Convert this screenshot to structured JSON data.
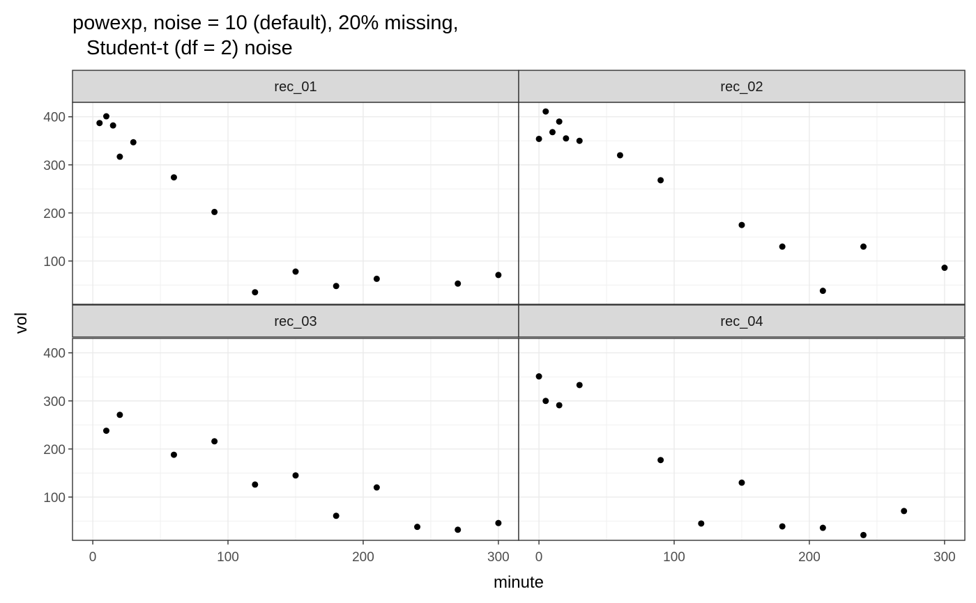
{
  "chart_data": {
    "type": "scatter",
    "title": "powexp, noise = 10 (default), 20% missing,\n  Student-t (df = 2) noise",
    "title_lines": [
      "powexp, noise = 10 (default), 20% missing,",
      "Student-t (df = 2) noise"
    ],
    "xlabel": "minute",
    "ylabel": "vol",
    "xlim": [
      -15,
      315
    ],
    "ylim": [
      10,
      430
    ],
    "x_ticks": [
      0,
      100,
      200,
      300
    ],
    "x_tick_labels": [
      "0",
      "100",
      "200",
      "300"
    ],
    "y_ticks": [
      100,
      200,
      300,
      400
    ],
    "y_tick_labels": [
      "100",
      "200",
      "300",
      "400"
    ],
    "grid": true,
    "theme": "bw",
    "layout": "2x2 facets",
    "point_color": "#000000",
    "facets": [
      {
        "label": "rec_01",
        "points": [
          {
            "x": 5,
            "y": 387
          },
          {
            "x": 10,
            "y": 401
          },
          {
            "x": 15,
            "y": 382
          },
          {
            "x": 20,
            "y": 317
          },
          {
            "x": 30,
            "y": 347
          },
          {
            "x": 60,
            "y": 274
          },
          {
            "x": 90,
            "y": 202
          },
          {
            "x": 120,
            "y": 35
          },
          {
            "x": 150,
            "y": 78
          },
          {
            "x": 180,
            "y": 48
          },
          {
            "x": 210,
            "y": 63
          },
          {
            "x": 270,
            "y": 53
          },
          {
            "x": 300,
            "y": 71
          }
        ]
      },
      {
        "label": "rec_02",
        "points": [
          {
            "x": 0,
            "y": 354
          },
          {
            "x": 5,
            "y": 411
          },
          {
            "x": 10,
            "y": 368
          },
          {
            "x": 15,
            "y": 390
          },
          {
            "x": 20,
            "y": 355
          },
          {
            "x": 30,
            "y": 350
          },
          {
            "x": 60,
            "y": 320
          },
          {
            "x": 90,
            "y": 268
          },
          {
            "x": 150,
            "y": 175
          },
          {
            "x": 180,
            "y": 130
          },
          {
            "x": 210,
            "y": 38
          },
          {
            "x": 240,
            "y": 130
          },
          {
            "x": 300,
            "y": 86
          }
        ]
      },
      {
        "label": "rec_03",
        "points": [
          {
            "x": 10,
            "y": 238
          },
          {
            "x": 20,
            "y": 271
          },
          {
            "x": 60,
            "y": 188
          },
          {
            "x": 90,
            "y": 216
          },
          {
            "x": 120,
            "y": 126
          },
          {
            "x": 150,
            "y": 145
          },
          {
            "x": 180,
            "y": 61
          },
          {
            "x": 210,
            "y": 120
          },
          {
            "x": 240,
            "y": 38
          },
          {
            "x": 270,
            "y": 32
          },
          {
            "x": 300,
            "y": 46
          }
        ]
      },
      {
        "label": "rec_04",
        "points": [
          {
            "x": 0,
            "y": 351
          },
          {
            "x": 5,
            "y": 300
          },
          {
            "x": 15,
            "y": 291
          },
          {
            "x": 30,
            "y": 333
          },
          {
            "x": 90,
            "y": 177
          },
          {
            "x": 120,
            "y": 45
          },
          {
            "x": 150,
            "y": 130
          },
          {
            "x": 180,
            "y": 39
          },
          {
            "x": 210,
            "y": 36
          },
          {
            "x": 240,
            "y": 21
          },
          {
            "x": 270,
            "y": 71
          }
        ]
      }
    ]
  }
}
